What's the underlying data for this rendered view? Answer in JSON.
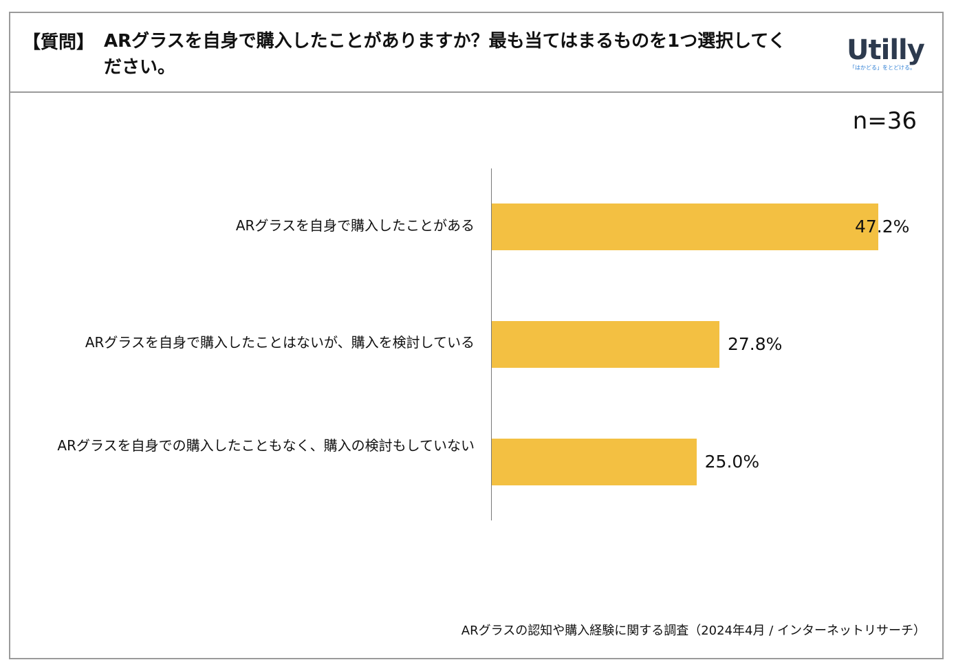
{
  "header": {
    "tag": "【質問】",
    "question": "ARグラスを自身で購入したことがありますか？最も当てはまるものを1つ選択してください。"
  },
  "logo": {
    "wordmark": "Utilly",
    "tagline": "「はかどる」をとどける。"
  },
  "sample_size": "n=36",
  "footer": "ARグラスの認知や購入経験に関する調査（2024年4月 / インターネットリサーチ）",
  "colors": {
    "bar": "#f3c042",
    "axis": "#777777",
    "border": "#9a9a9a"
  },
  "chart_data": {
    "type": "bar",
    "orientation": "horizontal",
    "categories": [
      "ARグラスを自身で購入したことがある",
      "ARグラスを自身で購入したことはないが、購入を検討している",
      "ARグラスを自身での購入したこともなく、購入の検討もしていない"
    ],
    "values": [
      47.2,
      27.8,
      25.0
    ],
    "value_labels": [
      "47.2%",
      "27.8%",
      "25.0%"
    ],
    "xlim": [
      0,
      100
    ],
    "grid": false,
    "legend": false
  }
}
